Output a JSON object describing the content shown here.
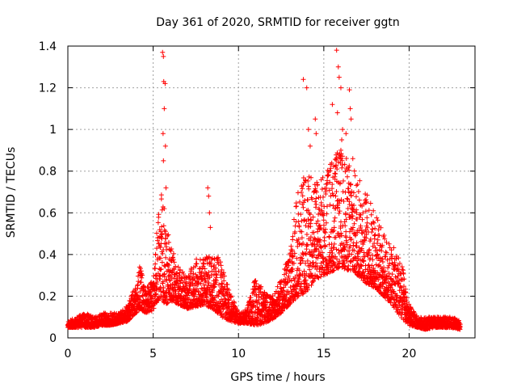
{
  "chart_data": {
    "type": "scatter",
    "title": "Day 361 of 2020, SRMTID for receiver ggtn",
    "xlabel": "GPS time / hours",
    "ylabel": "SRMTID / TECUs",
    "xlim": [
      0,
      23.86
    ],
    "ylim": [
      0,
      1.4
    ],
    "xticks": [
      0,
      5,
      10,
      15,
      20
    ],
    "xtick_labels": [
      "0",
      "5",
      "10",
      "15",
      "20"
    ],
    "yticks": [
      0,
      0.2,
      0.4,
      0.6,
      0.8,
      1.0,
      1.2,
      1.4
    ],
    "ytick_labels": [
      "0",
      "0.2",
      "0.4",
      "0.6",
      "0.8",
      "1",
      "1.2",
      "1.4"
    ],
    "grid": true,
    "marker": "+",
    "series": [
      {
        "name": "SRMTID ggtn",
        "color": "#ff0000",
        "envelope": {
          "x": [
            0,
            0.5,
            1,
            1.5,
            2,
            2.5,
            3,
            3.5,
            4,
            4.25,
            4.5,
            5,
            5.25,
            5.5,
            5.75,
            6,
            6.5,
            7,
            7.5,
            8,
            8.5,
            9,
            9.5,
            10,
            10.5,
            11,
            11.5,
            12,
            12.5,
            13,
            13.5,
            14,
            14.5,
            15,
            15.5,
            16,
            16.5,
            17,
            17.5,
            18,
            18.5,
            19,
            19.5,
            20,
            20.5,
            21,
            21.5,
            22,
            22.5,
            23
          ],
          "low": [
            0.05,
            0.05,
            0.05,
            0.05,
            0.06,
            0.06,
            0.07,
            0.08,
            0.12,
            0.14,
            0.12,
            0.13,
            0.18,
            0.18,
            0.16,
            0.18,
            0.16,
            0.14,
            0.15,
            0.16,
            0.14,
            0.1,
            0.08,
            0.07,
            0.07,
            0.06,
            0.07,
            0.09,
            0.12,
            0.16,
            0.2,
            0.22,
            0.28,
            0.3,
            0.32,
            0.34,
            0.32,
            0.3,
            0.26,
            0.24,
            0.2,
            0.16,
            0.1,
            0.06,
            0.05,
            0.04,
            0.05,
            0.05,
            0.05,
            0.04
          ],
          "high": [
            0.08,
            0.1,
            0.12,
            0.1,
            0.12,
            0.12,
            0.12,
            0.16,
            0.26,
            0.36,
            0.24,
            0.28,
            0.55,
            0.7,
            0.58,
            0.45,
            0.34,
            0.3,
            0.38,
            0.4,
            0.4,
            0.38,
            0.22,
            0.12,
            0.14,
            0.3,
            0.22,
            0.2,
            0.28,
            0.42,
            0.72,
            0.8,
            0.75,
            0.78,
            0.88,
            0.9,
            0.85,
            0.78,
            0.7,
            0.62,
            0.5,
            0.44,
            0.4,
            0.16,
            0.1,
            0.1,
            0.1,
            0.1,
            0.1,
            0.09
          ]
        },
        "spikes": [
          {
            "x": 5.55,
            "y": 1.37
          },
          {
            "x": 5.6,
            "y": 1.35
          },
          {
            "x": 5.62,
            "y": 1.23
          },
          {
            "x": 5.7,
            "y": 1.22
          },
          {
            "x": 5.65,
            "y": 1.1
          },
          {
            "x": 5.58,
            "y": 0.98
          },
          {
            "x": 5.72,
            "y": 0.92
          },
          {
            "x": 5.6,
            "y": 0.85
          },
          {
            "x": 5.75,
            "y": 0.72
          },
          {
            "x": 5.65,
            "y": 0.62
          },
          {
            "x": 8.2,
            "y": 0.72
          },
          {
            "x": 8.25,
            "y": 0.68
          },
          {
            "x": 8.3,
            "y": 0.6
          },
          {
            "x": 8.35,
            "y": 0.53
          },
          {
            "x": 13.8,
            "y": 1.24
          },
          {
            "x": 14.0,
            "y": 1.2
          },
          {
            "x": 14.1,
            "y": 1.0
          },
          {
            "x": 14.2,
            "y": 0.92
          },
          {
            "x": 14.5,
            "y": 1.05
          },
          {
            "x": 14.55,
            "y": 0.98
          },
          {
            "x": 15.5,
            "y": 1.12
          },
          {
            "x": 15.75,
            "y": 1.38
          },
          {
            "x": 15.85,
            "y": 1.3
          },
          {
            "x": 15.9,
            "y": 1.25
          },
          {
            "x": 16.0,
            "y": 1.2
          },
          {
            "x": 15.8,
            "y": 1.08
          },
          {
            "x": 16.1,
            "y": 1.0
          },
          {
            "x": 16.05,
            "y": 0.95
          },
          {
            "x": 16.5,
            "y": 1.19
          },
          {
            "x": 16.55,
            "y": 1.1
          },
          {
            "x": 16.6,
            "y": 1.05
          },
          {
            "x": 16.3,
            "y": 0.98
          },
          {
            "x": 16.0,
            "y": 0.9
          },
          {
            "x": 16.7,
            "y": 0.86
          },
          {
            "x": 15.7,
            "y": 0.82
          }
        ]
      }
    ]
  }
}
